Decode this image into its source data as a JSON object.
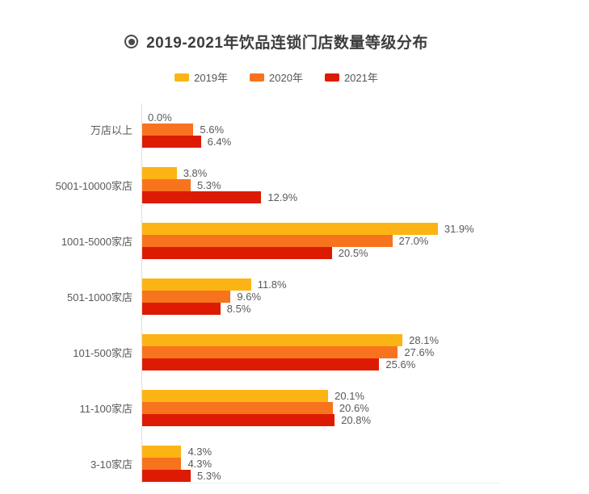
{
  "title": {
    "text": "2019-2021年饮品连锁门店数量等级分布"
  },
  "chart_data": {
    "type": "bar",
    "orientation": "horizontal",
    "title": "2019-2021年饮品连锁门店数量等级分布",
    "unit": "%",
    "value_labels": true,
    "legend_position": "top",
    "grid": false,
    "xlim": [
      0,
      38.7
    ],
    "categories": [
      "万店以上",
      "5001-10000家店",
      "1001-5000家店",
      "501-1000家店",
      "101-500家店",
      "11-100家店",
      "3-10家店"
    ],
    "series": [
      {
        "name": "2019年",
        "color": "#FCB415",
        "values": [
          0.0,
          3.8,
          31.9,
          11.8,
          28.1,
          20.1,
          4.3
        ]
      },
      {
        "name": "2020年",
        "color": "#F8731D",
        "values": [
          5.6,
          5.3,
          27.0,
          9.6,
          27.6,
          20.6,
          4.3
        ]
      },
      {
        "name": "2021年",
        "color": "#DD1B02",
        "values": [
          6.4,
          12.9,
          20.5,
          8.5,
          25.6,
          20.8,
          5.3
        ]
      }
    ],
    "value_label_format": "{value}%"
  }
}
